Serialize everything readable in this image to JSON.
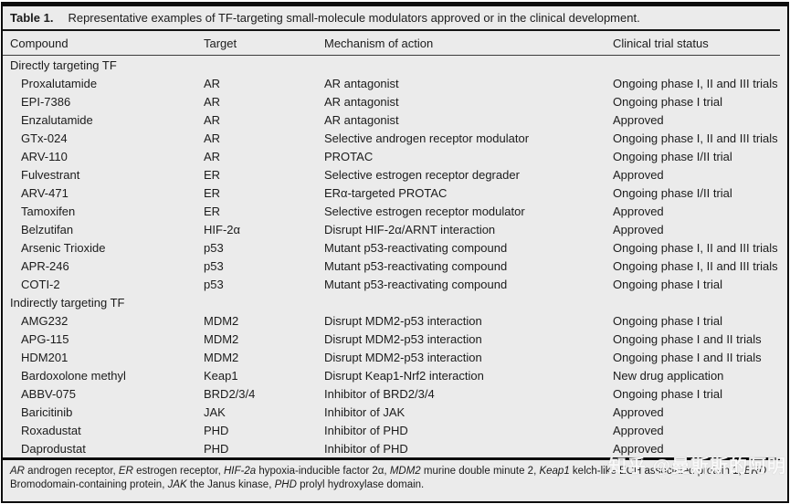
{
  "title": {
    "label": "Table 1.",
    "caption": "Representative examples of TF-targeting small-molecule modulators approved or in the clinical development."
  },
  "table": {
    "columns": [
      "Compound",
      "Target",
      "Mechanism of action",
      "Clinical trial status"
    ],
    "rows": [
      {
        "type": "section",
        "compound": "Directly targeting TF"
      },
      {
        "type": "data",
        "compound": "Proxalutamide",
        "target": "AR",
        "mechanism": "AR antagonist",
        "status": "Ongoing phase I, II and III trials"
      },
      {
        "type": "data",
        "compound": "EPI-7386",
        "target": "AR",
        "mechanism": "AR antagonist",
        "status": "Ongoing phase I trial"
      },
      {
        "type": "data",
        "compound": "Enzalutamide",
        "target": "AR",
        "mechanism": "AR antagonist",
        "status": "Approved"
      },
      {
        "type": "data",
        "compound": "GTx-024",
        "target": "AR",
        "mechanism": "Selective androgen receptor modulator",
        "status": "Ongoing phase I, II and III trials"
      },
      {
        "type": "data",
        "compound": "ARV-110",
        "target": "AR",
        "mechanism": "PROTAC",
        "status": "Ongoing phase I/II trial"
      },
      {
        "type": "data",
        "compound": "Fulvestrant",
        "target": "ER",
        "mechanism": "Selective estrogen receptor degrader",
        "status": "Approved"
      },
      {
        "type": "data",
        "compound": "ARV-471",
        "target": "ER",
        "mechanism": "ERα-targeted PROTAC",
        "status": "Ongoing phase I/II trial"
      },
      {
        "type": "data",
        "compound": "Tamoxifen",
        "target": "ER",
        "mechanism": "Selective estrogen receptor modulator",
        "status": "Approved"
      },
      {
        "type": "data",
        "compound": "Belzutifan",
        "target": "HIF-2α",
        "mechanism": "Disrupt HIF-2α/ARNT interaction",
        "status": "Approved"
      },
      {
        "type": "data",
        "compound": "Arsenic Trioxide",
        "target": "p53",
        "mechanism": "Mutant p53-reactivating compound",
        "status": "Ongoing phase I, II and III trials"
      },
      {
        "type": "data",
        "compound": "APR-246",
        "target": "p53",
        "mechanism": "Mutant p53-reactivating compound",
        "status": "Ongoing phase I, II and III trials"
      },
      {
        "type": "data",
        "compound": "COTI-2",
        "target": "p53",
        "mechanism": "Mutant p53-reactivating compound",
        "status": "Ongoing phase I trial"
      },
      {
        "type": "section",
        "compound": "Indirectly targeting TF"
      },
      {
        "type": "data",
        "compound": "AMG232",
        "target": "MDM2",
        "mechanism": "Disrupt MDM2-p53 interaction",
        "status": "Ongoing phase I trial"
      },
      {
        "type": "data",
        "compound": "APG-115",
        "target": "MDM2",
        "mechanism": "Disrupt MDM2-p53 interaction",
        "status": "Ongoing phase I and II trials"
      },
      {
        "type": "data",
        "compound": "HDM201",
        "target": "MDM2",
        "mechanism": "Disrupt MDM2-p53 interaction",
        "status": "Ongoing phase I and II trials"
      },
      {
        "type": "data",
        "compound": "Bardoxolone methyl",
        "target": "Keap1",
        "mechanism": "Disrupt Keap1-Nrf2 interaction",
        "status": "New drug application"
      },
      {
        "type": "data",
        "compound": "ABBV-075",
        "target": "BRD2/3/4",
        "mechanism": "Inhibitor of BRD2/3/4",
        "status": "Ongoing phase I trial"
      },
      {
        "type": "data",
        "compound": "Baricitinib",
        "target": "JAK",
        "mechanism": "Inhibitor of JAK",
        "status": "Approved"
      },
      {
        "type": "data",
        "compound": "Roxadustat",
        "target": "PHD",
        "mechanism": "Inhibitor of PHD",
        "status": "Approved"
      },
      {
        "type": "data",
        "compound": "Daprodustat",
        "target": "PHD",
        "mechanism": "Inhibitor of PHD",
        "status": "Approved"
      }
    ]
  },
  "footnote": {
    "segments": [
      {
        "text": "AR",
        "italic": true
      },
      {
        "text": " androgen receptor, ",
        "italic": false
      },
      {
        "text": "ER",
        "italic": true
      },
      {
        "text": " estrogen receptor, ",
        "italic": false
      },
      {
        "text": "HIF-2a",
        "italic": true
      },
      {
        "text": " hypoxia-inducible factor 2α, ",
        "italic": false
      },
      {
        "text": "MDM2",
        "italic": true
      },
      {
        "text": " murine double minute 2, ",
        "italic": false
      },
      {
        "text": "Keap1",
        "italic": true
      },
      {
        "text": " kelch-like ECH associated protein 1, ",
        "italic": false
      },
      {
        "text": "BRD",
        "italic": true
      },
      {
        "text": " Bromodomain-containing protein, ",
        "italic": false
      },
      {
        "text": "JAK",
        "italic": true
      },
      {
        "text": " the Janus kinase, ",
        "italic": false
      },
      {
        "text": "PHD",
        "italic": true
      },
      {
        "text": " prolyl hydroxylase domain.",
        "italic": false
      }
    ]
  },
  "watermark": {
    "text": "知乎 @曼斯斯的阿明"
  },
  "colors": {
    "panel_background": "#ebebeb",
    "text": "#1b1b1b",
    "border": "#0d0d0d",
    "watermark": "#ffffff"
  }
}
